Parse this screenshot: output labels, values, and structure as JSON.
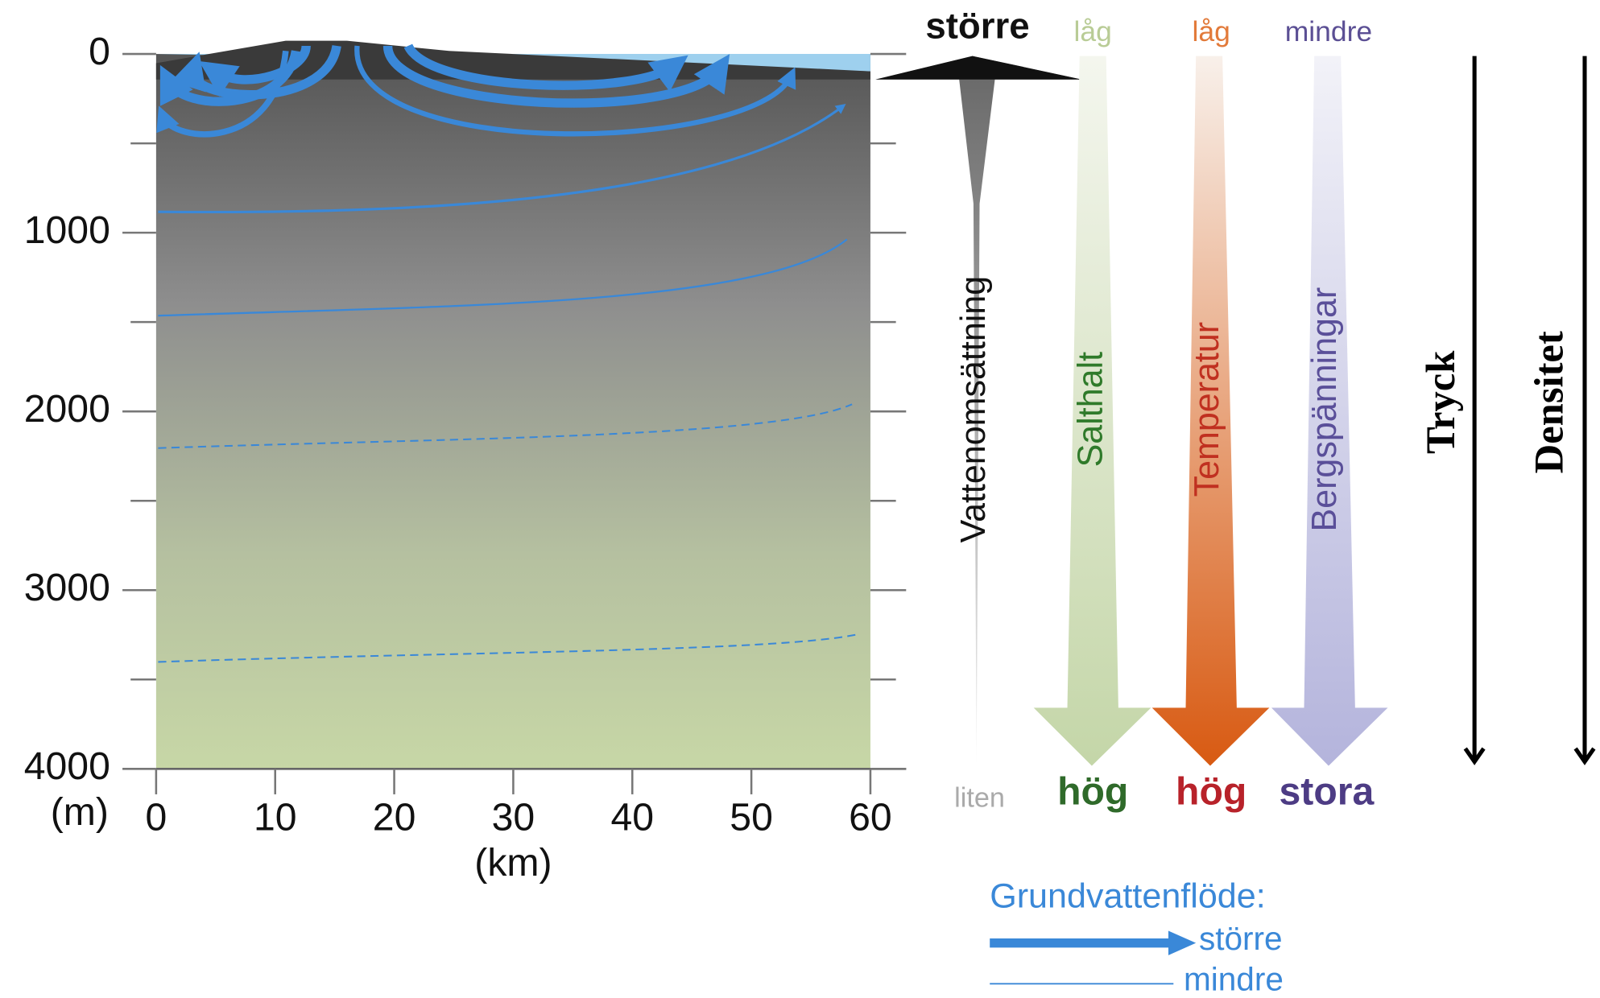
{
  "y_axis": {
    "unit": "(m)",
    "ticks": [
      0,
      1000,
      2000,
      3000,
      4000
    ]
  },
  "x_axis": {
    "unit": "(km)",
    "ticks": [
      0,
      10,
      20,
      30,
      40,
      50,
      60
    ]
  },
  "columns": [
    {
      "label": "Vattenomsättning",
      "top": "större",
      "bottom": "liten"
    },
    {
      "label": "Salthalt",
      "top": "låg",
      "bottom": "hög"
    },
    {
      "label": "Temperatur",
      "top": "låg",
      "bottom": "hög"
    },
    {
      "label": "Bergspänningar",
      "top": "mindre",
      "bottom": "stora"
    },
    {
      "label": "Tryck"
    },
    {
      "label": "Densitet"
    }
  ],
  "legend": {
    "title": "Grundvattenflöde:",
    "items": [
      "större",
      "mindre"
    ]
  }
}
